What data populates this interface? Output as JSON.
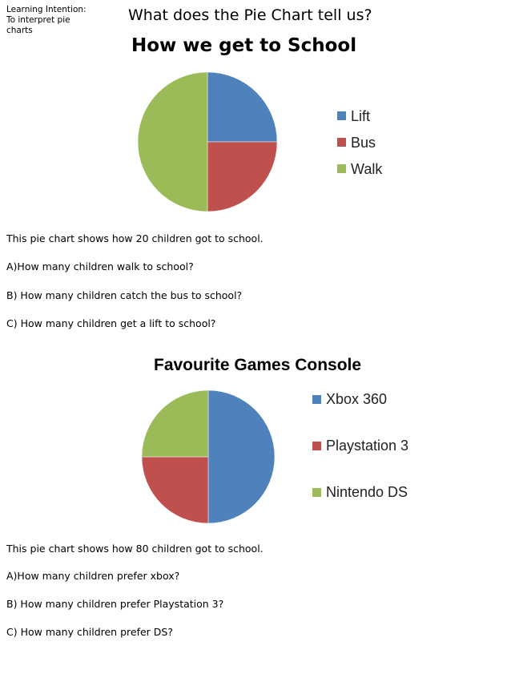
{
  "header": {
    "intention_heading": "Learning Intention:",
    "intention_line1": "To interpret pie",
    "intention_line2": "charts",
    "title": "What does the Pie Chart tell us?"
  },
  "chart_data": [
    {
      "type": "pie",
      "title": "How we get to School",
      "categories": [
        "Lift",
        "Bus",
        "Walk"
      ],
      "values": [
        5,
        5,
        10
      ],
      "colors": [
        "#4f81bd",
        "#c0504d",
        "#9bbb59"
      ],
      "legend": "right"
    },
    {
      "type": "pie",
      "title": "Favourite Games Console",
      "categories": [
        "Xbox 360",
        "Playstation 3",
        "Nintendo DS"
      ],
      "values": [
        40,
        20,
        20
      ],
      "colors": [
        "#4f81bd",
        "#c0504d",
        "#9bbb59"
      ],
      "legend": "right"
    }
  ],
  "section1": {
    "intro": "This pie chart shows how 20 children got to school.",
    "questions": [
      "A)How many children walk to school?",
      "B) How many children catch the bus to school?",
      "C) How many children get a lift to school?"
    ]
  },
  "section2": {
    "intro": "This pie chart shows how 80 children got to school.",
    "questions": [
      "A)How many children  prefer xbox?",
      "B) How many children  prefer Playstation 3?",
      "C) How many children prefer DS?"
    ]
  }
}
